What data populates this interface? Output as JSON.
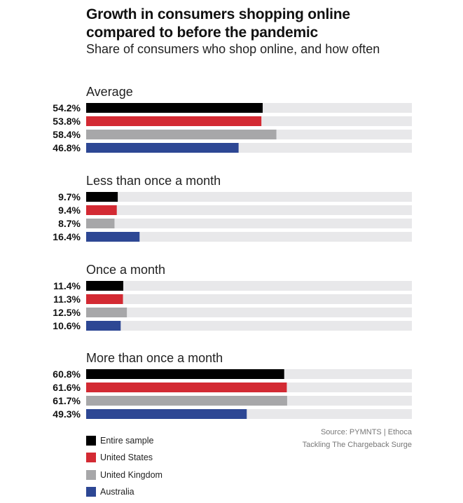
{
  "title_line1": "Growth in consumers shopping online",
  "title_line2": "compared to before the pandemic",
  "subtitle": "Share of consumers who shop online, and how often",
  "source_line1": "Source: PYMNTS  |  Ethoca",
  "source_line2": "Tackling The Chargeback Surge",
  "chart_data": {
    "type": "bar",
    "orientation": "horizontal",
    "xlim": [
      0,
      100
    ],
    "value_suffix": "%",
    "series": [
      {
        "name": "Entire sample",
        "color": "#000000"
      },
      {
        "name": "United States",
        "color": "#d32a33"
      },
      {
        "name": "United Kingdom",
        "color": "#a7a7a9"
      },
      {
        "name": "Australia",
        "color": "#2d4794"
      }
    ],
    "groups": [
      {
        "label": "Average",
        "values": [
          54.2,
          53.8,
          58.4,
          46.8
        ]
      },
      {
        "label": "Less than once a month",
        "values": [
          9.7,
          9.4,
          8.7,
          16.4
        ]
      },
      {
        "label": "Once a month",
        "values": [
          11.4,
          11.3,
          12.5,
          10.6
        ]
      },
      {
        "label": "More than once a month",
        "values": [
          60.8,
          61.6,
          61.7,
          49.3
        ]
      }
    ],
    "track_color": "#e8e8ea"
  }
}
